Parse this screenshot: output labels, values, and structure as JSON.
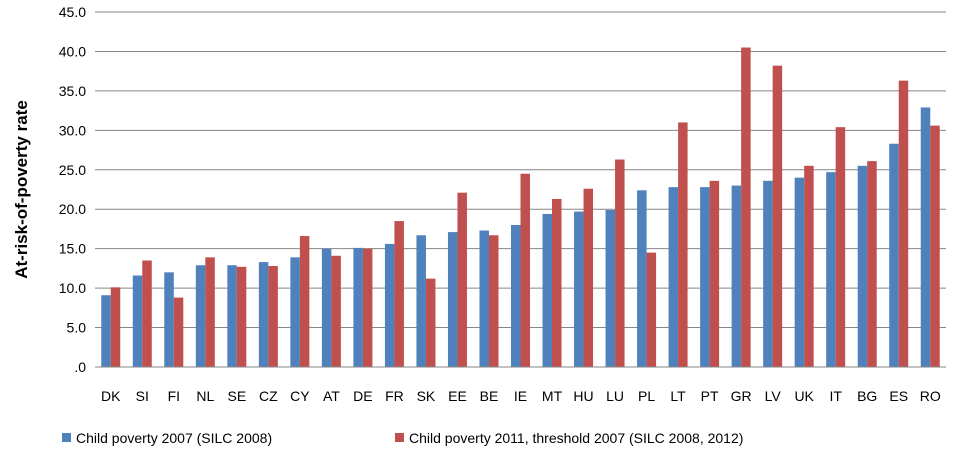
{
  "chart_data": {
    "type": "bar",
    "ylabel": "At-risk-of-poverty rate",
    "ylim": [
      0,
      45
    ],
    "yticks": [
      ".0",
      "5.0",
      "10.0",
      "15.0",
      "20.0",
      "25.0",
      "30.0",
      "35.0",
      "40.0",
      "45.0"
    ],
    "grid": true,
    "legend_position": "bottom",
    "categories": [
      "DK",
      "SI",
      "FI",
      "NL",
      "SE",
      "CZ",
      "CY",
      "AT",
      "DE",
      "FR",
      "SK",
      "EE",
      "BE",
      "IE",
      "MT",
      "HU",
      "LU",
      "PL",
      "LT",
      "PT",
      "GR",
      "LV",
      "UK",
      "IT",
      "BG",
      "ES",
      "RO"
    ],
    "series": [
      {
        "name": "Child poverty 2007 (SILC 2008)",
        "color": "#4f81bd",
        "values": [
          9.1,
          11.6,
          12.0,
          12.9,
          12.9,
          13.3,
          13.9,
          15.0,
          15.1,
          15.6,
          16.7,
          17.1,
          17.3,
          18.0,
          19.4,
          19.7,
          19.9,
          22.4,
          22.8,
          22.8,
          23.0,
          23.6,
          24.0,
          24.7,
          25.5,
          28.3,
          32.9
        ]
      },
      {
        "name": "Child poverty 2011, threshold 2007 (SILC 2008, 2012)",
        "color": "#c0504d",
        "values": [
          10.1,
          13.5,
          8.8,
          13.9,
          12.7,
          12.8,
          16.6,
          14.1,
          15.0,
          18.5,
          11.2,
          22.1,
          16.7,
          24.5,
          21.3,
          22.6,
          26.3,
          14.5,
          31.0,
          23.6,
          40.5,
          38.2,
          25.5,
          30.4,
          26.1,
          36.3,
          30.6
        ]
      }
    ]
  }
}
